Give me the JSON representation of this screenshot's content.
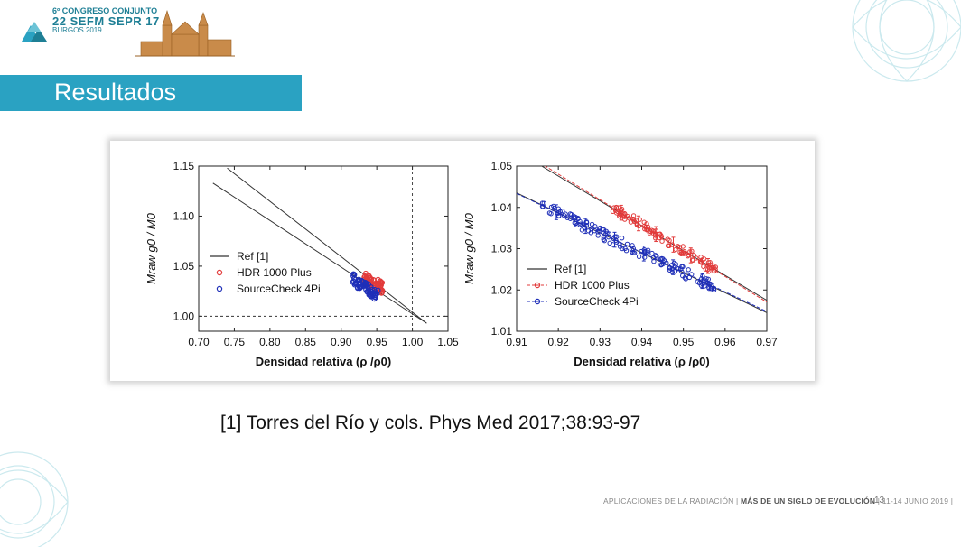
{
  "header": {
    "logo": {
      "line1": "6º CONGRESO CONJUNTO",
      "line2": "22 SEFM SEPR 17",
      "line3": "BURGOS 2019"
    },
    "title": "Resultados"
  },
  "citation": "[1] Torres del Río y cols. Phys Med 2017;38:93-97",
  "footer": {
    "text": "APLICACIONES DE LA RADIACIÓN",
    "highlight": "MÁS DE UN SIGLO DE EVOLUCIÓN",
    "dates": "11-14 JUNIO 2019",
    "page": "13"
  },
  "colors": {
    "title_bar": "#2aa2c2",
    "ref": "#333333",
    "hdr": "#e23b3b",
    "sourcecheck": "#1f2fb8"
  },
  "chart_data": [
    {
      "type": "scatter",
      "xlabel": "Densidad relativa (ρ /ρ0)",
      "ylabel": "Mraw g0 / M0",
      "xlim": [
        0.7,
        1.05
      ],
      "ylim": [
        0.985,
        1.15
      ],
      "x_ticks": [
        "0.70",
        "0.75",
        "0.80",
        "0.85",
        "0.90",
        "0.95",
        "1.00",
        "1.05"
      ],
      "y_ticks": [
        "1.00",
        "1.05",
        "1.10",
        "1.15"
      ],
      "legend_position": "center-left",
      "series": [
        {
          "name": "Ref [1]",
          "kind": "line",
          "lines": [
            [
              [
                0.72,
                1.133
              ],
              [
                1.02,
                0.993
              ]
            ],
            [
              [
                0.74,
                1.148
              ],
              [
                1.02,
                0.993
              ]
            ]
          ]
        },
        {
          "name": "HDR 1000 Plus",
          "kind": "cluster",
          "x_range": [
            0.932,
            0.958
          ],
          "y_center": 1.034,
          "marker": "open-circle"
        },
        {
          "name": "SourceCheck 4Pi",
          "kind": "cluster",
          "x_range": [
            0.916,
            0.952
          ],
          "y_center": 1.029,
          "marker": "open-circle"
        }
      ],
      "reference_lines": {
        "x": 1.0,
        "y": 1.0
      }
    },
    {
      "type": "scatter",
      "xlabel": "Densidad relativa (ρ /ρ0)",
      "ylabel": "Mraw g0 / M0",
      "xlim": [
        0.91,
        0.97
      ],
      "ylim": [
        1.01,
        1.05
      ],
      "x_ticks": [
        "0.91",
        "0.92",
        "0.93",
        "0.94",
        "0.95",
        "0.96",
        "0.97"
      ],
      "y_ticks": [
        "1.01",
        "1.02",
        "1.03",
        "1.04",
        "1.05"
      ],
      "legend_position": "bottom-left",
      "series": [
        {
          "name": "Ref [1]",
          "kind": "line",
          "lines": [
            [
              [
                0.916,
                1.05
              ],
              [
                0.97,
                1.0175
              ]
            ],
            [
              [
                0.91,
                1.0435
              ],
              [
                0.97,
                1.0145
              ]
            ]
          ]
        },
        {
          "name": "HDR 1000 Plus",
          "kind": "scatter-fit",
          "x_range": [
            0.933,
            0.958
          ],
          "fit": [
            [
              0.933,
              1.04
            ],
            [
              0.958,
              1.0245
            ]
          ],
          "spread": 0.0012
        },
        {
          "name": "SourceCheck 4Pi",
          "kind": "scatter-fit",
          "x_range": [
            0.916,
            0.958
          ],
          "fit": [
            [
              0.916,
              1.0405
            ],
            [
              0.958,
              1.0205
            ]
          ],
          "spread": 0.0014
        }
      ]
    }
  ]
}
